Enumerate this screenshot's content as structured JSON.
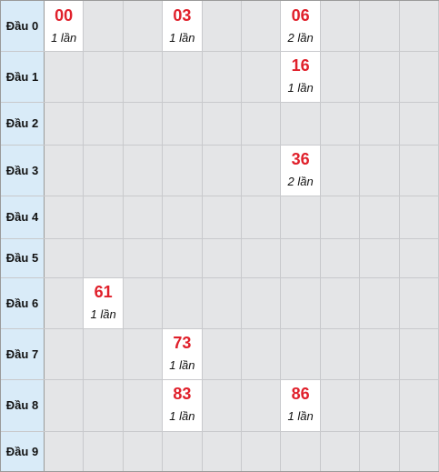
{
  "rows": [
    {
      "label": "Đầu 0",
      "cells": [
        {
          "col": 0,
          "num": "00",
          "count": "1 lần"
        },
        {
          "col": 3,
          "num": "03",
          "count": "1 lần"
        },
        {
          "col": 6,
          "num": "06",
          "count": "2 lần"
        }
      ]
    },
    {
      "label": "Đầu 1",
      "cells": [
        {
          "col": 6,
          "num": "16",
          "count": "1 lần"
        }
      ]
    },
    {
      "label": "Đầu 2",
      "cells": []
    },
    {
      "label": "Đầu 3",
      "cells": [
        {
          "col": 6,
          "num": "36",
          "count": "2 lần"
        }
      ]
    },
    {
      "label": "Đầu 4",
      "cells": []
    },
    {
      "label": "Đầu 5",
      "cells": []
    },
    {
      "label": "Đầu 6",
      "cells": [
        {
          "col": 1,
          "num": "61",
          "count": "1 lần"
        }
      ]
    },
    {
      "label": "Đầu 7",
      "cells": [
        {
          "col": 3,
          "num": "73",
          "count": "1 lần"
        }
      ]
    },
    {
      "label": "Đầu 8",
      "cells": [
        {
          "col": 3,
          "num": "83",
          "count": "1 lần"
        },
        {
          "col": 6,
          "num": "86",
          "count": "1 lần"
        }
      ]
    },
    {
      "label": "Đầu 9",
      "cells": []
    }
  ],
  "colors": {
    "number": "#e0202b",
    "header_bg": "#d9ebf8",
    "empty_cell": "#e4e5e7",
    "hit_cell": "#ffffff"
  }
}
